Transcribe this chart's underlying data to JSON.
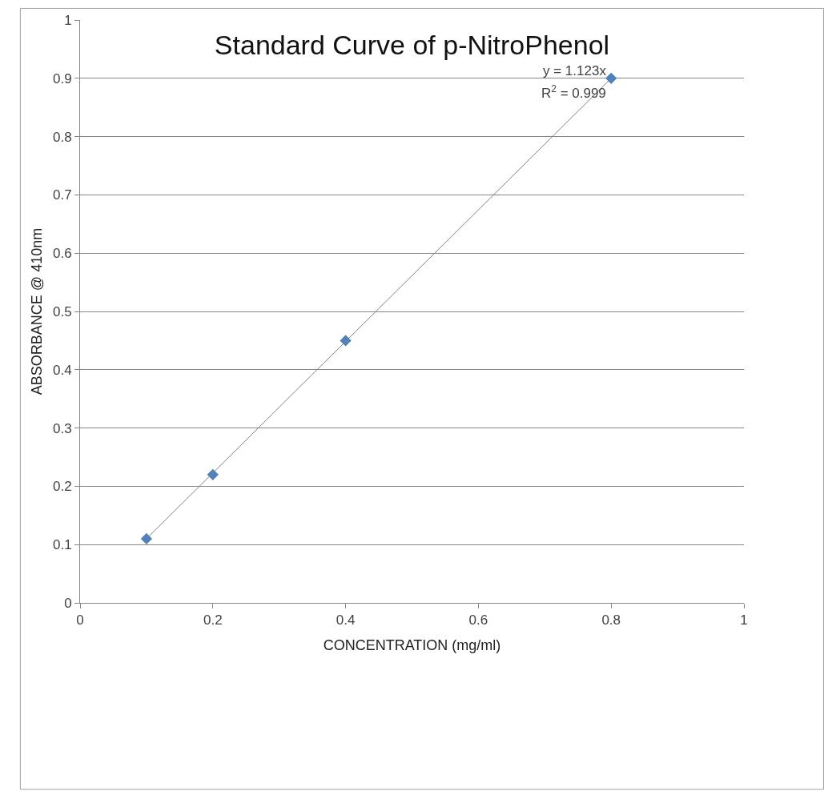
{
  "chart_data": {
    "type": "scatter",
    "title": "Standard Curve of p-NitroPhenol",
    "xlabel": "CONCENTRATION (mg/ml)",
    "ylabel": "ABSORBANCE @ 410nm",
    "x": [
      0.1,
      0.2,
      0.4,
      0.8
    ],
    "series": [
      {
        "color": "#4f81bd",
        "marker": "diamond",
        "values": [
          0.11,
          0.22,
          0.45,
          0.9
        ]
      },
      {
        "type": "line",
        "color": "#808080",
        "marker": "none",
        "line_style": "solid",
        "x": [
          0.1,
          0.8
        ],
        "values": [
          0.11,
          0.9
        ]
      }
    ],
    "annotations": [
      {
        "text": "y = 1.123x",
        "x": 0.8,
        "y": 0.9
      },
      {
        "text": "R$^{2}$ = 0.999",
        "x": 0.8,
        "y": 0.9
      }
    ],
    "xlim": [
      0,
      1
    ],
    "xticks": [
      0,
      0.2,
      0.4,
      0.6,
      0.8,
      1
    ],
    "ylim": [
      0,
      1
    ],
    "yticks": [
      0,
      0.1,
      0.2,
      0.3,
      0.4,
      0.5,
      0.6,
      0.7,
      0.8,
      0.9,
      1
    ],
    "grid": "y"
  }
}
